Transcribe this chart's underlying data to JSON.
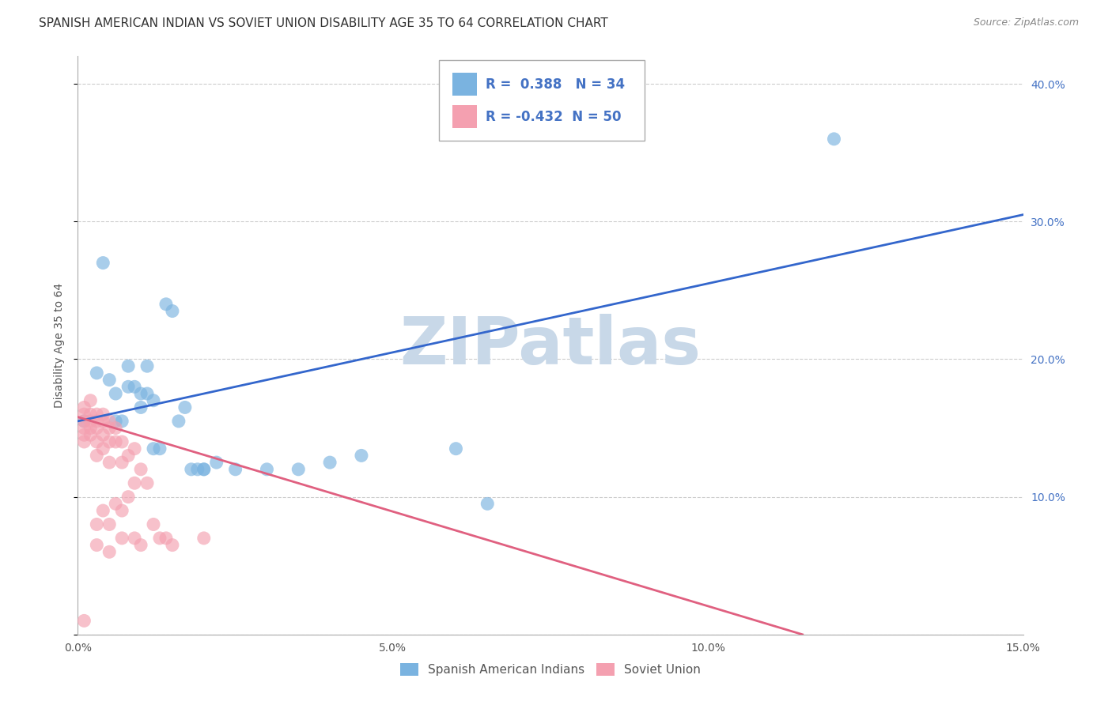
{
  "title": "SPANISH AMERICAN INDIAN VS SOVIET UNION DISABILITY AGE 35 TO 64 CORRELATION CHART",
  "source": "Source: ZipAtlas.com",
  "ylabel": "Disability Age 35 to 64",
  "x_min": 0.0,
  "x_max": 0.15,
  "y_min": 0.0,
  "y_max": 0.42,
  "x_ticks": [
    0.0,
    0.05,
    0.1,
    0.15
  ],
  "x_tick_labels": [
    "0.0%",
    "5.0%",
    "10.0%",
    "15.0%"
  ],
  "y_ticks": [
    0.0,
    0.1,
    0.2,
    0.3,
    0.4
  ],
  "y_tick_labels_right": [
    "",
    "10.0%",
    "20.0%",
    "30.0%",
    "40.0%"
  ],
  "grid_color": "#cccccc",
  "background_color": "#ffffff",
  "watermark_text": "ZIPatlas",
  "watermark_color": "#c8d8e8",
  "blue_color": "#7ab3e0",
  "pink_color": "#f4a0b0",
  "blue_line_color": "#3366cc",
  "pink_line_color": "#e06080",
  "blue_label": "Spanish American Indians",
  "pink_label": "Soviet Union",
  "R_blue": 0.388,
  "N_blue": 34,
  "R_pink": -0.432,
  "N_pink": 50,
  "blue_scatter_x": [
    0.001,
    0.003,
    0.004,
    0.005,
    0.006,
    0.006,
    0.007,
    0.008,
    0.008,
    0.009,
    0.01,
    0.01,
    0.011,
    0.011,
    0.012,
    0.012,
    0.013,
    0.014,
    0.015,
    0.016,
    0.017,
    0.018,
    0.019,
    0.02,
    0.02,
    0.022,
    0.025,
    0.03,
    0.035,
    0.04,
    0.045,
    0.06,
    0.065,
    0.12
  ],
  "blue_scatter_y": [
    0.155,
    0.19,
    0.27,
    0.185,
    0.175,
    0.155,
    0.155,
    0.195,
    0.18,
    0.18,
    0.175,
    0.165,
    0.195,
    0.175,
    0.17,
    0.135,
    0.135,
    0.24,
    0.235,
    0.155,
    0.165,
    0.12,
    0.12,
    0.12,
    0.12,
    0.125,
    0.12,
    0.12,
    0.12,
    0.125,
    0.13,
    0.135,
    0.095,
    0.36
  ],
  "pink_scatter_x": [
    0.001,
    0.001,
    0.001,
    0.001,
    0.001,
    0.001,
    0.001,
    0.002,
    0.002,
    0.002,
    0.002,
    0.002,
    0.003,
    0.003,
    0.003,
    0.003,
    0.003,
    0.003,
    0.003,
    0.004,
    0.004,
    0.004,
    0.004,
    0.004,
    0.005,
    0.005,
    0.005,
    0.005,
    0.005,
    0.005,
    0.006,
    0.006,
    0.006,
    0.007,
    0.007,
    0.007,
    0.007,
    0.008,
    0.008,
    0.009,
    0.009,
    0.009,
    0.01,
    0.01,
    0.011,
    0.012,
    0.013,
    0.014,
    0.015,
    0.02
  ],
  "pink_scatter_y": [
    0.165,
    0.16,
    0.155,
    0.15,
    0.145,
    0.14,
    0.01,
    0.17,
    0.16,
    0.155,
    0.15,
    0.145,
    0.16,
    0.155,
    0.15,
    0.14,
    0.13,
    0.08,
    0.065,
    0.16,
    0.155,
    0.145,
    0.135,
    0.09,
    0.155,
    0.15,
    0.14,
    0.125,
    0.08,
    0.06,
    0.15,
    0.14,
    0.095,
    0.14,
    0.125,
    0.09,
    0.07,
    0.13,
    0.1,
    0.135,
    0.11,
    0.07,
    0.12,
    0.065,
    0.11,
    0.08,
    0.07,
    0.07,
    0.065,
    0.07
  ],
  "blue_line_x": [
    0.0,
    0.15
  ],
  "blue_line_y": [
    0.155,
    0.305
  ],
  "pink_line_x": [
    0.0,
    0.115
  ],
  "pink_line_y": [
    0.158,
    0.0
  ],
  "title_fontsize": 11,
  "axis_label_fontsize": 10,
  "tick_fontsize": 10,
  "right_tick_color": "#4472c4",
  "legend_R_color": "#4472c4",
  "legend_N_color": "#333333"
}
